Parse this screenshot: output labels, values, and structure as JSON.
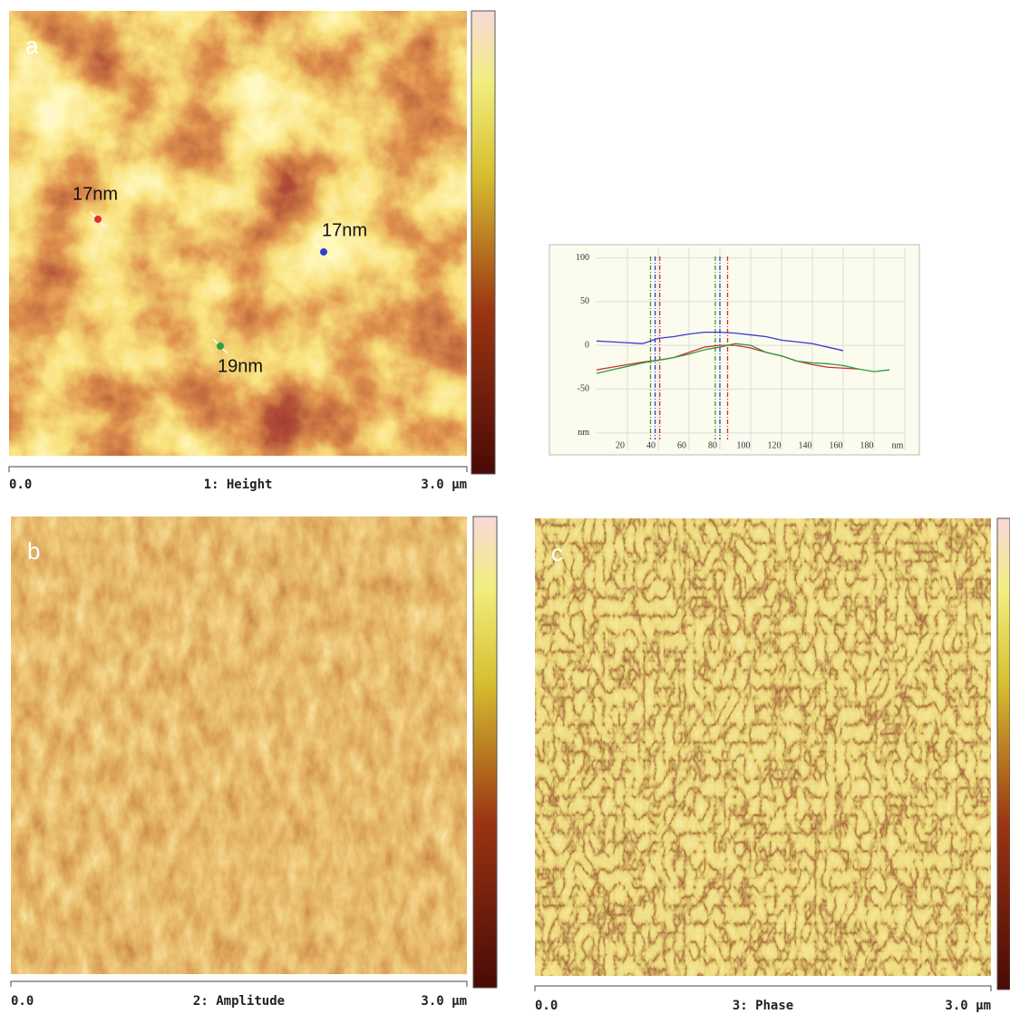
{
  "panels": [
    {
      "label": "a",
      "caption": "1: Height",
      "scale_start": "0.0",
      "scale_end": "3.0 µm",
      "annotations": [
        "17nm",
        "17nm",
        "19nm"
      ]
    },
    {
      "label": "b",
      "caption": "2: Amplitude",
      "scale_start": "0.0",
      "scale_end": "3.0 µm"
    },
    {
      "label": "c",
      "caption": "3: Phase",
      "scale_start": "0.0",
      "scale_end": "3.0 µm"
    }
  ],
  "chart_data": {
    "type": "line",
    "x": [
      0,
      10,
      20,
      30,
      40,
      50,
      60,
      70,
      80,
      90,
      100,
      110,
      120,
      130,
      140,
      150,
      160,
      170,
      180,
      190
    ],
    "series": [
      {
        "color": "#3a3acc",
        "values": [
          5,
          4,
          3,
          2,
          8,
          10,
          13,
          15,
          15,
          14,
          12,
          10,
          6,
          4,
          2,
          -2,
          -6,
          null,
          null,
          null
        ]
      },
      {
        "color": "#d03030",
        "values": [
          -28,
          -25,
          -22,
          -19,
          -17,
          -14,
          -8,
          -2,
          0,
          0,
          -3,
          -8,
          -12,
          -18,
          -22,
          -25,
          -26,
          -27,
          null,
          null
        ]
      },
      {
        "color": "#2e9a3e",
        "values": [
          -32,
          -28,
          -24,
          -20,
          -17,
          -14,
          -10,
          -5,
          -2,
          2,
          0,
          -8,
          -12,
          -18,
          -20,
          -21,
          -23,
          -27,
          -30,
          -28
        ]
      }
    ],
    "cursors": [
      {
        "color": "#2e9a3e",
        "x": 35
      },
      {
        "color": "#3a3acc",
        "x": 38
      },
      {
        "color": "#d03030",
        "x": 41
      },
      {
        "color": "#2e9a3e",
        "x": 77
      },
      {
        "color": "#3a3acc",
        "x": 80
      },
      {
        "color": "#d03030",
        "x": 85
      }
    ],
    "xlim": [
      0,
      200
    ],
    "ylim": [
      -120,
      112
    ],
    "xticks": [
      20,
      40,
      60,
      80,
      100,
      120,
      140,
      160,
      180,
      {
        "value": 200,
        "label": "nm"
      }
    ],
    "yticks": [
      100,
      50,
      0,
      -50,
      {
        "value": -100,
        "label": "nm"
      }
    ],
    "grid": true
  }
}
